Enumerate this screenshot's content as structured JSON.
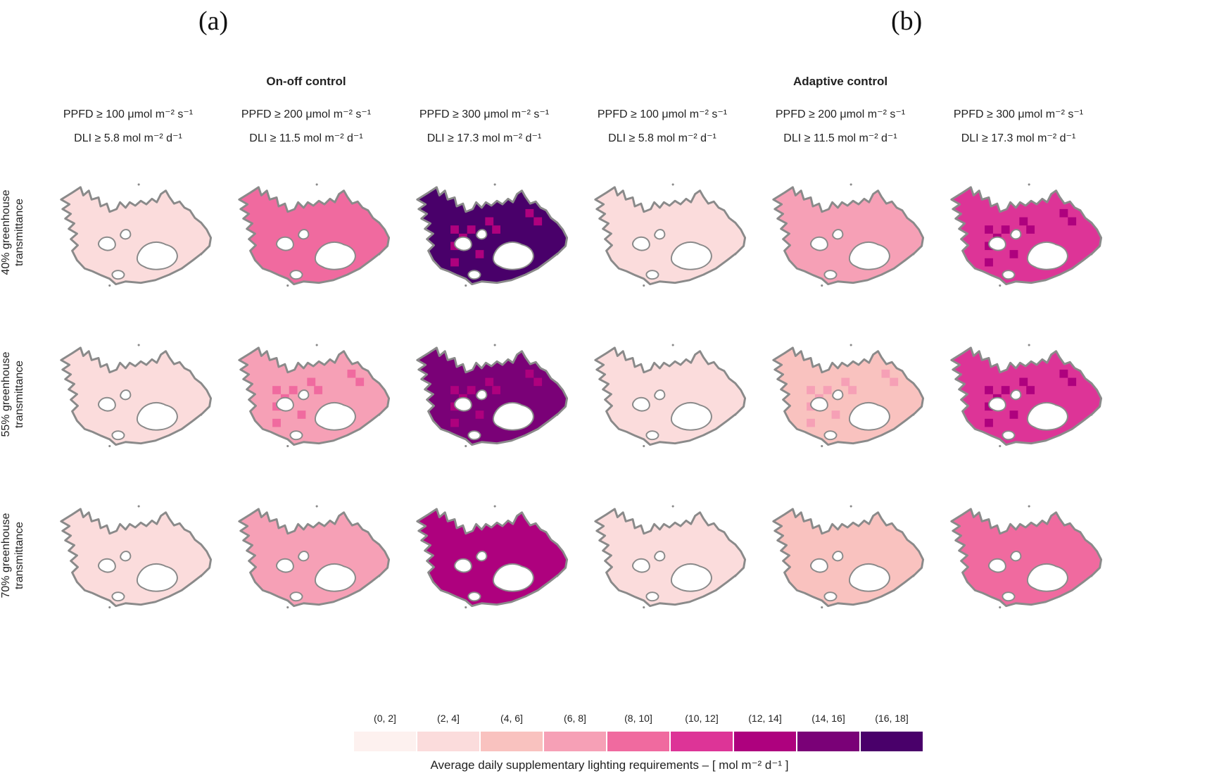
{
  "panels": {
    "a": "(a)",
    "b": "(b)"
  },
  "groups": {
    "a": "On-off control",
    "b": "Adaptive control"
  },
  "columns": [
    {
      "ppfd": "PPFD ≥ 100 μmol m⁻² s⁻¹",
      "dli": "DLI ≥ 5.8 mol m⁻² d⁻¹"
    },
    {
      "ppfd": "PPFD ≥ 200 μmol m⁻² s⁻¹",
      "dli": "DLI ≥ 11.5 mol m⁻² d⁻¹"
    },
    {
      "ppfd": "PPFD ≥ 300 μmol m⁻² s⁻¹",
      "dli": "DLI ≥ 17.3 mol m⁻² d⁻¹"
    },
    {
      "ppfd": "PPFD ≥ 100 μmol m⁻² s⁻¹",
      "dli": "DLI ≥ 5.8 mol m⁻² d⁻¹"
    },
    {
      "ppfd": "PPFD ≥ 200 μmol m⁻² s⁻¹",
      "dli": "DLI ≥ 11.5 mol m⁻² d⁻¹"
    },
    {
      "ppfd": "PPFD ≥ 300 μmol m⁻² s⁻¹",
      "dli": "DLI ≥ 17.3 mol m⁻² d⁻¹"
    }
  ],
  "rows": [
    {
      "l1": "40% greenhouse",
      "l2": "transmittance"
    },
    {
      "l1": "55% greenhouse",
      "l2": "transmittance"
    },
    {
      "l1": "70% greenhouse",
      "l2": "transmittance"
    }
  ],
  "legend": {
    "title": "Average daily supplementary lighting requirements – [ mol m⁻² d⁻¹ ]",
    "bins": [
      "(0, 2]",
      "(2, 4]",
      "(4, 6]",
      "(6, 8]",
      "(8, 10]",
      "(10, 12]",
      "(12, 14]",
      "(14, 16]",
      "(16, 18]"
    ],
    "colors": [
      "#fdf1ef",
      "#fbdcdc",
      "#f9c2bf",
      "#f6a0b6",
      "#f06a9f",
      "#dd3497",
      "#ae017e",
      "#7a0177",
      "#49006a"
    ]
  },
  "chart_data": {
    "type": "heatmap",
    "title": "Average daily supplementary lighting requirements",
    "unit": "mol m⁻² d⁻¹",
    "row_dimension": [
      "40% greenhouse transmittance",
      "55% greenhouse transmittance",
      "70% greenhouse transmittance"
    ],
    "column_dimension": [
      "On-off control, PPFD ≥ 100 / DLI ≥ 5.8",
      "On-off control, PPFD ≥ 200 / DLI ≥ 11.5",
      "On-off control, PPFD ≥ 300 / DLI ≥ 17.3",
      "Adaptive control, PPFD ≥ 100 / DLI ≥ 5.8",
      "Adaptive control, PPFD ≥ 200 / DLI ≥ 11.5",
      "Adaptive control, PPFD ≥ 300 / DLI ≥ 17.3"
    ],
    "dominant_bin_index": [
      [
        1,
        4,
        8,
        1,
        3,
        5
      ],
      [
        1,
        3,
        7,
        1,
        2,
        5
      ],
      [
        1,
        3,
        6,
        1,
        2,
        4
      ]
    ],
    "patch_bin_index": [
      [
        null,
        null,
        6,
        null,
        null,
        6
      ],
      [
        null,
        4,
        6,
        null,
        3,
        6
      ],
      [
        null,
        null,
        null,
        null,
        null,
        null
      ]
    ]
  }
}
